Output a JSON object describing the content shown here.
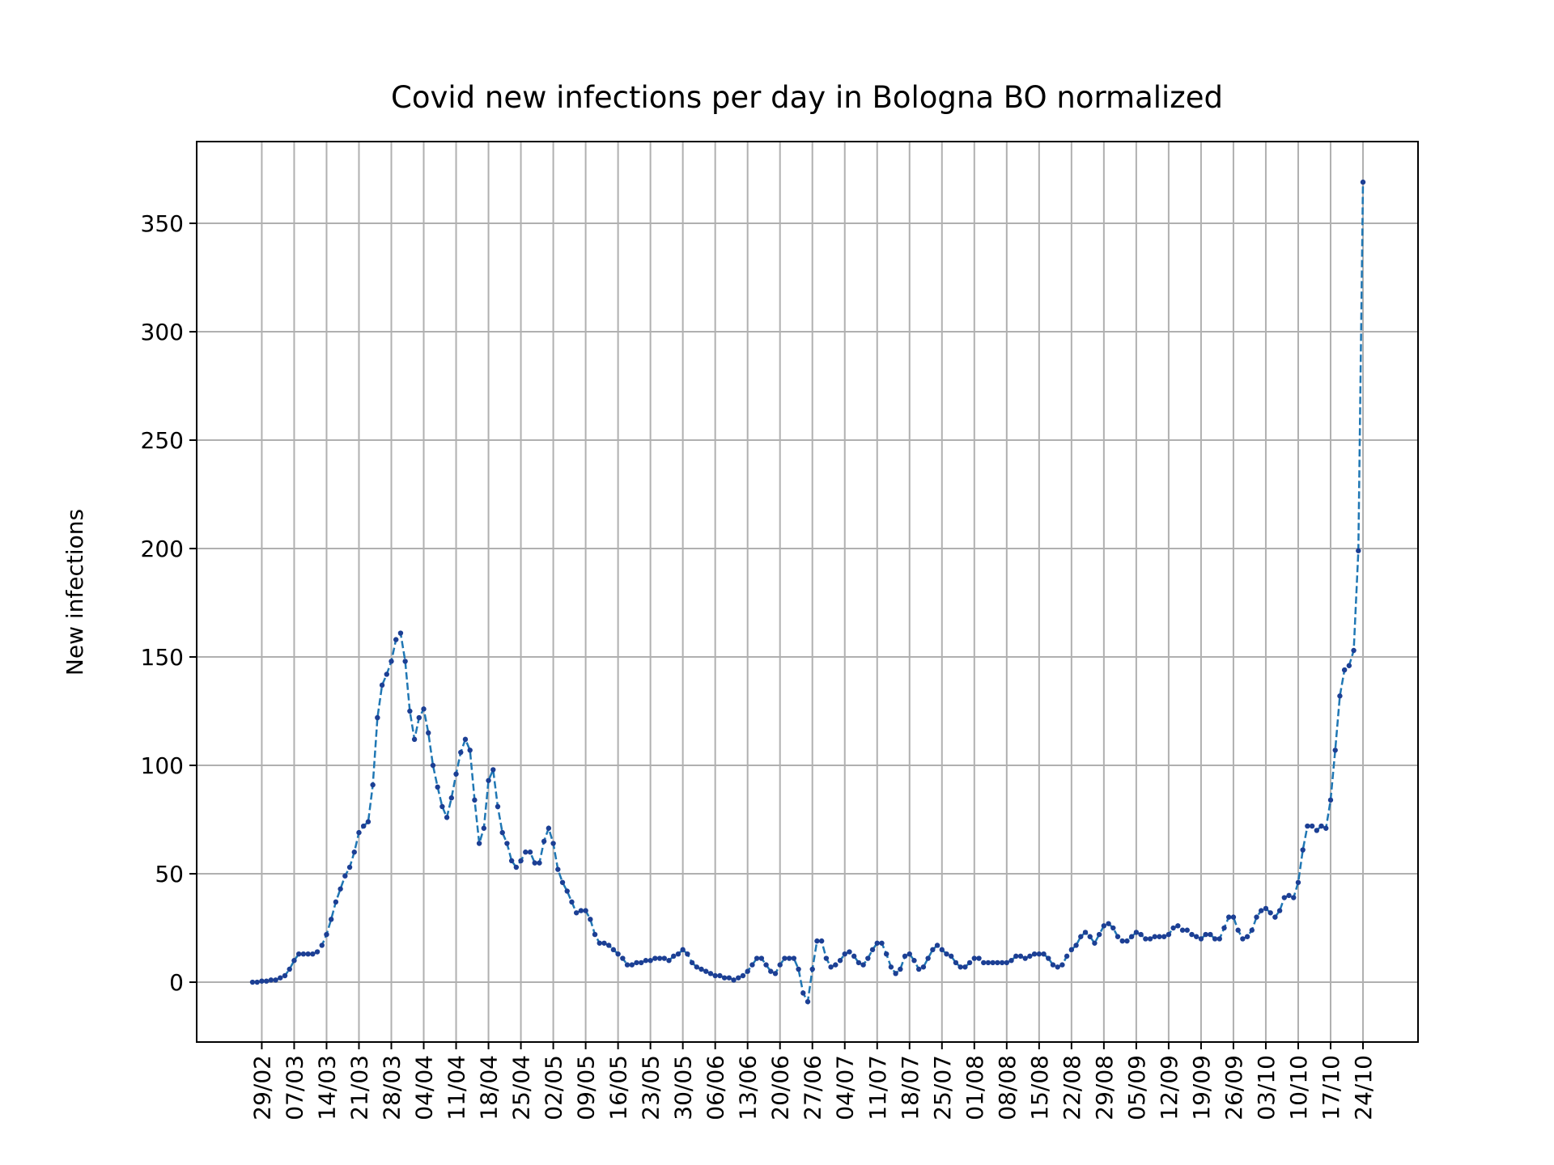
{
  "chart_data": {
    "type": "line",
    "title": "Covid new infections per day in Bologna BO normalized",
    "y_label": "New infections",
    "categories": [
      null,
      null,
      "29/02",
      null,
      null,
      null,
      null,
      null,
      null,
      "07/03",
      null,
      null,
      null,
      null,
      null,
      null,
      "14/03",
      null,
      null,
      null,
      null,
      null,
      null,
      "21/03",
      null,
      null,
      null,
      null,
      null,
      null,
      "28/03",
      null,
      null,
      null,
      null,
      null,
      null,
      "04/04",
      null,
      null,
      null,
      null,
      null,
      null,
      "11/04",
      null,
      null,
      null,
      null,
      null,
      null,
      "18/04",
      null,
      null,
      null,
      null,
      null,
      null,
      "25/04",
      null,
      null,
      null,
      null,
      null,
      null,
      "02/05",
      null,
      null,
      null,
      null,
      null,
      null,
      "09/05",
      null,
      null,
      null,
      null,
      null,
      null,
      "16/05",
      null,
      null,
      null,
      null,
      null,
      null,
      "23/05",
      null,
      null,
      null,
      null,
      null,
      null,
      "30/05",
      null,
      null,
      null,
      null,
      null,
      null,
      "06/06",
      null,
      null,
      null,
      null,
      null,
      null,
      "13/06",
      null,
      null,
      null,
      null,
      null,
      null,
      "20/06",
      null,
      null,
      null,
      null,
      null,
      null,
      "27/06",
      null,
      null,
      null,
      null,
      null,
      null,
      "04/07",
      null,
      null,
      null,
      null,
      null,
      null,
      "11/07",
      null,
      null,
      null,
      null,
      null,
      null,
      "18/07",
      null,
      null,
      null,
      null,
      null,
      null,
      "25/07",
      null,
      null,
      null,
      null,
      null,
      null,
      "01/08",
      null,
      null,
      null,
      null,
      null,
      null,
      "08/08",
      null,
      null,
      null,
      null,
      null,
      null,
      "15/08",
      null,
      null,
      null,
      null,
      null,
      null,
      "22/08",
      null,
      null,
      null,
      null,
      null,
      null,
      "29/08",
      null,
      null,
      null,
      null,
      null,
      null,
      "05/09",
      null,
      null,
      null,
      null,
      null,
      null,
      "12/09",
      null,
      null,
      null,
      null,
      null,
      null,
      "19/09",
      null,
      null,
      null,
      null,
      null,
      null,
      "26/09",
      null,
      null,
      null,
      null,
      null,
      null,
      "03/10",
      null,
      null,
      null,
      null,
      null,
      null,
      "10/10",
      null,
      null,
      null,
      null,
      null,
      null,
      "17/10",
      null,
      null,
      null,
      null,
      null,
      null,
      "24/10"
    ],
    "values": [
      0,
      0,
      0.5,
      0.5,
      1,
      1,
      2,
      3,
      6,
      10,
      13,
      13,
      13,
      13,
      14,
      17,
      22,
      29,
      37,
      43,
      49,
      53,
      60,
      69,
      72,
      74,
      91,
      122,
      137,
      142,
      148,
      158,
      161,
      148,
      125,
      112,
      122,
      126,
      115,
      100,
      90,
      81,
      76,
      85,
      96,
      106,
      112,
      107,
      84,
      64,
      71,
      93,
      98,
      81,
      69,
      64,
      56,
      53,
      56,
      60,
      60,
      55,
      55,
      65,
      71,
      64,
      52,
      46,
      42,
      37,
      32,
      33,
      33,
      29,
      22,
      18,
      18,
      17,
      15,
      13,
      11,
      8,
      8,
      9,
      9,
      10,
      10,
      11,
      11,
      11,
      10,
      12,
      13,
      15,
      13,
      9,
      7,
      6,
      5,
      4,
      3,
      3,
      2,
      2,
      1,
      2,
      3,
      5,
      8,
      11,
      11,
      8,
      5,
      4,
      8,
      11,
      11,
      11,
      6,
      -5,
      -9,
      6,
      19,
      19,
      11,
      7,
      8,
      10,
      13,
      14,
      12,
      9,
      8,
      11,
      15,
      18,
      18,
      13,
      7,
      4,
      6,
      12,
      13,
      10,
      6,
      7,
      11,
      15,
      17,
      15,
      13,
      12,
      9,
      7,
      7,
      9,
      11,
      11,
      9,
      9,
      9,
      9,
      9,
      9,
      10,
      12,
      12,
      11,
      12,
      13,
      13,
      13,
      11,
      8,
      7,
      8,
      12,
      15,
      17,
      21,
      23,
      21,
      18,
      22,
      26,
      27,
      25,
      21,
      19,
      19,
      21,
      23,
      22,
      20,
      20,
      21,
      21,
      21,
      22,
      25,
      26,
      24,
      24,
      22,
      21,
      20,
      22,
      22,
      20,
      20,
      25,
      30,
      30,
      24,
      20,
      21,
      24,
      30,
      33,
      34,
      32,
      30,
      33,
      39,
      40,
      39,
      46,
      61,
      72,
      72,
      70,
      72,
      71,
      84,
      107,
      132,
      144,
      146,
      153,
      199,
      369
    ],
    "color": "#1f77b4",
    "marker_color": "#1c3f94",
    "line_style": "dashed",
    "ylim": [
      -27.6,
      387.7
    ],
    "yticks": [
      0,
      50,
      100,
      150,
      200,
      250,
      300,
      350
    ],
    "grid": true
  }
}
